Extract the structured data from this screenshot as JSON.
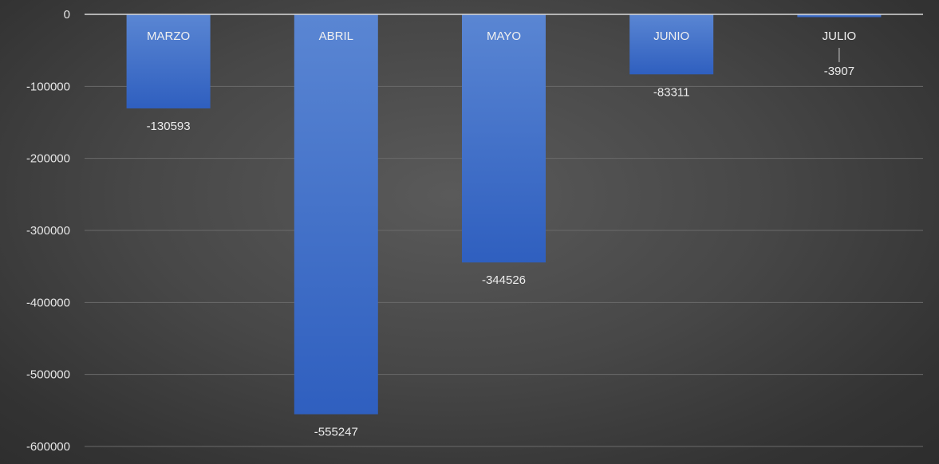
{
  "chart_data": {
    "type": "bar",
    "categories": [
      "MARZO",
      "ABRIL",
      "MAYO",
      "JUNIO",
      "JULIO"
    ],
    "values": [
      -130593,
      -555247,
      -344526,
      -83311,
      -3907
    ],
    "data_labels": [
      "-130593",
      "-555247",
      "-344526",
      "-83311",
      "-3907"
    ],
    "y_ticks": [
      0,
      -100000,
      -200000,
      -300000,
      -400000,
      -500000,
      -600000
    ],
    "y_tick_labels": [
      "0",
      "-100000",
      "-200000",
      "-300000",
      "-400000",
      "-500000",
      "-600000"
    ],
    "ylim": [
      -600000,
      0
    ],
    "grid": true,
    "legend": "none",
    "category_label_placement": "inside-top-of-bar",
    "colors": {
      "bar_top": "#5a86d3",
      "bar_bottom": "#2f5fbf",
      "gridline": "#6a6a6a",
      "zero_line": "#d9d9d9",
      "text": "#e6e6e6"
    }
  }
}
